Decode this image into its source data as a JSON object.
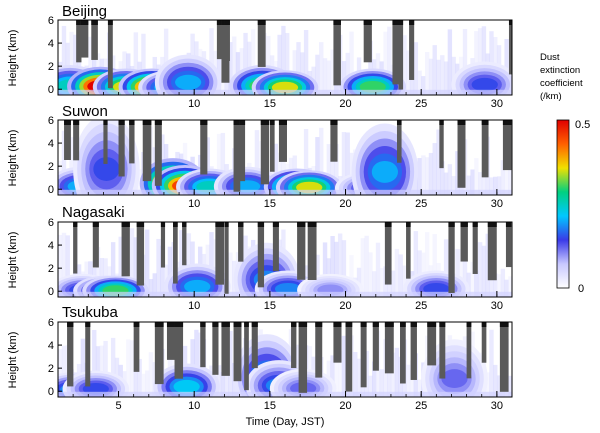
{
  "chart_data": {
    "type": "heatmap",
    "xlabel": "Time (Day, JST)",
    "ylabel": "Height (km)",
    "xlim": [
      1,
      31
    ],
    "ylim": [
      -0.5,
      6
    ],
    "y_ticks": [
      0,
      2,
      4,
      6
    ],
    "colorbar": {
      "label_lines": [
        "Dust",
        "extinction",
        "coefficient",
        "(/km)"
      ],
      "min": 0,
      "max": 0.5,
      "tick_labels": [
        "0.5",
        "0"
      ],
      "tick_values": [
        0.5,
        0
      ],
      "colors": [
        "#ffffff",
        "#c8c8ff",
        "#3a3ae8",
        "#00c8ff",
        "#00d080",
        "#f0e000",
        "#ff6000",
        "#e00000"
      ]
    },
    "panels": [
      {
        "name": "Beijing",
        "x_ticks": [
          10,
          15,
          20,
          25,
          30
        ],
        "dust_events": [
          {
            "day": 1.8,
            "height": 0.6,
            "intensity": 0.25
          },
          {
            "day": 3.8,
            "height": 0.5,
            "intensity": 0.5
          },
          {
            "day": 5.5,
            "height": 0.4,
            "intensity": 0.35
          },
          {
            "day": 7.2,
            "height": 0.4,
            "intensity": 0.45
          },
          {
            "day": 8.5,
            "height": 0.3,
            "intensity": 0.25
          },
          {
            "day": 9.6,
            "height": 1.2,
            "intensity": 0.2
          },
          {
            "day": 14.5,
            "height": 0.6,
            "intensity": 0.3
          },
          {
            "day": 16.0,
            "height": 0.3,
            "intensity": 0.35
          },
          {
            "day": 21.8,
            "height": 0.4,
            "intensity": 0.3
          },
          {
            "day": 29.2,
            "height": 0.8,
            "intensity": 0.15
          }
        ],
        "cloud_days": [
          2.2,
          2.5,
          3.2,
          4.3,
          11.5,
          11.8,
          12.0,
          14.2,
          19.2,
          21.2,
          23.1,
          23.5,
          24.2,
          30.8
        ]
      },
      {
        "name": "Suwon",
        "x_ticks": [
          10,
          15,
          20,
          25,
          30
        ],
        "dust_events": [
          {
            "day": 2.5,
            "height": 0.5,
            "intensity": 0.2
          },
          {
            "day": 4.2,
            "height": 3.5,
            "intensity": 0.15
          },
          {
            "day": 8.6,
            "height": 1.0,
            "intensity": 0.5
          },
          {
            "day": 9.4,
            "height": 0.6,
            "intensity": 0.45
          },
          {
            "day": 11.0,
            "height": 0.4,
            "intensity": 0.25
          },
          {
            "day": 13.5,
            "height": 0.5,
            "intensity": 0.2
          },
          {
            "day": 16.8,
            "height": 0.4,
            "intensity": 0.4
          },
          {
            "day": 17.6,
            "height": 0.3,
            "intensity": 0.35
          },
          {
            "day": 21.5,
            "height": 0.2,
            "intensity": 0.15
          },
          {
            "day": 22.6,
            "height": 3.0,
            "intensity": 0.2
          }
        ],
        "cloud_days": [
          1.4,
          2.0,
          4.0,
          5.0,
          5.7,
          6.6,
          7.4,
          10.4,
          12.6,
          13.0,
          14.4,
          15.0,
          15.6,
          19.0,
          23.4,
          26.2,
          27.4,
          29.0,
          30.4
        ]
      },
      {
        "name": "Nagasaki",
        "x_ticks": [
          10,
          15,
          20,
          25,
          30
        ],
        "dust_events": [
          {
            "day": 2.6,
            "height": 0.2,
            "intensity": 0.15
          },
          {
            "day": 4.2,
            "height": 0.1,
            "intensity": 0.25
          },
          {
            "day": 4.8,
            "height": 0.1,
            "intensity": 0.3
          },
          {
            "day": 10.2,
            "height": 0.8,
            "intensity": 0.2
          },
          {
            "day": 14.8,
            "height": 2.0,
            "intensity": 0.18
          },
          {
            "day": 16.2,
            "height": 0.4,
            "intensity": 0.18
          },
          {
            "day": 19.0,
            "height": 0.2,
            "intensity": 0.1
          },
          {
            "day": 26.0,
            "height": 0.4,
            "intensity": 0.15
          }
        ],
        "cloud_days": [
          2.0,
          3.3,
          5.2,
          6.2,
          7.8,
          8.6,
          9.2,
          11.4,
          12.0,
          12.9,
          14.2,
          15.2,
          16.8,
          17.5,
          22.6,
          24.0,
          26.8,
          27.6,
          28.4,
          29.4,
          30.6
        ]
      },
      {
        "name": "Tsukuba",
        "x_ticks": [
          5,
          10,
          15,
          20,
          25,
          30
        ],
        "dust_events": [
          {
            "day": 2.0,
            "height": 0.3,
            "intensity": 0.18
          },
          {
            "day": 3.5,
            "height": 0.4,
            "intensity": 0.15
          },
          {
            "day": 9.5,
            "height": 0.8,
            "intensity": 0.22
          },
          {
            "day": 14.8,
            "height": 2.5,
            "intensity": 0.2
          },
          {
            "day": 15.6,
            "height": 1.0,
            "intensity": 0.18
          },
          {
            "day": 17.2,
            "height": 0.5,
            "intensity": 0.12
          },
          {
            "day": 27.2,
            "height": 2.2,
            "intensity": 0.12
          }
        ],
        "cloud_days": [
          1.6,
          2.8,
          6.0,
          7.4,
          8.2,
          8.7,
          10.4,
          11.2,
          11.8,
          12.6,
          13.3,
          13.8,
          16.4,
          16.9,
          18.0,
          19.2,
          20.0,
          21.0,
          21.8,
          22.6,
          23.6,
          24.3,
          25.4,
          26.2,
          28.0,
          29.0,
          30.2,
          31.0
        ]
      }
    ]
  }
}
